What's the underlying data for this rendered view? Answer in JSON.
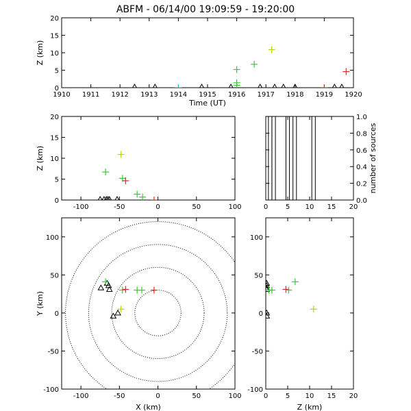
{
  "title": "ABFM - 06/14/00 19:09:59 - 19:20:00",
  "colors": {
    "station": "#000000",
    "cyan": "#00cccc",
    "green": "#33cc33",
    "yellow_green": "#aadd00",
    "red": "#ee2222",
    "range_ring": "#000000"
  },
  "chart_data": [
    {
      "id": "time_height",
      "type": "scatter",
      "xlabel": "Time (UT)",
      "ylabel": "Z (km)",
      "xlim": [
        1910,
        1920
      ],
      "ylim": [
        0,
        20
      ],
      "xticks": [
        "1910",
        "1911",
        "1912",
        "1913",
        "1914",
        "1915",
        "1916",
        "1917",
        "1918",
        "1919",
        "1920"
      ],
      "yticks": [
        "0",
        "5",
        "10",
        "15",
        "20"
      ],
      "stations_x": [
        1912.5,
        1913.2,
        1914.8,
        1915.8,
        1916.8,
        1917.3,
        1917.6,
        1918.0,
        1919.35,
        1919.6
      ],
      "sources": [
        {
          "x": 1914.0,
          "y": 0.0,
          "color": "cyan"
        },
        {
          "x": 1916.0,
          "y": 5.2,
          "color": "green"
        },
        {
          "x": 1916.0,
          "y": 1.4,
          "color": "green"
        },
        {
          "x": 1916.0,
          "y": 0.7,
          "color": "green"
        },
        {
          "x": 1916.6,
          "y": 6.7,
          "color": "green"
        },
        {
          "x": 1917.2,
          "y": 10.9,
          "color": "yellow_green"
        },
        {
          "x": 1919.0,
          "y": 0.0,
          "color": "red"
        },
        {
          "x": 1919.75,
          "y": 4.6,
          "color": "red"
        }
      ]
    },
    {
      "id": "x_height",
      "type": "scatter",
      "xlabel": "",
      "ylabel": "Z (km)",
      "xlim": [
        -125,
        100
      ],
      "ylim": [
        0,
        20
      ],
      "xticks": [
        "-100",
        "-50",
        "0",
        "50",
        "100"
      ],
      "yticks": [
        "0",
        "5",
        "10",
        "15",
        "20"
      ],
      "stations_x": [
        -75,
        -70,
        -67,
        -65,
        -63,
        -53
      ],
      "sources": [
        {
          "x": -68,
          "y": 6.7,
          "color": "green"
        },
        {
          "x": -48,
          "y": 10.9,
          "color": "yellow_green"
        },
        {
          "x": -46,
          "y": 5.2,
          "color": "green"
        },
        {
          "x": -42,
          "y": 4.6,
          "color": "red"
        },
        {
          "x": -27,
          "y": 1.4,
          "color": "green"
        },
        {
          "x": -20,
          "y": 0.7,
          "color": "green"
        },
        {
          "x": -5,
          "y": 0.0,
          "color": "red"
        }
      ]
    },
    {
      "id": "histogram",
      "type": "bar",
      "xlabel": "",
      "ylabel": "number of sources",
      "xlim": [
        0,
        20
      ],
      "ylim": [
        0,
        1.0
      ],
      "xticks": [
        "0",
        "5",
        "10",
        "15",
        "20"
      ],
      "yticks": [
        "0.0",
        "0.2",
        "0.4",
        "0.6",
        "0.8",
        "1.0"
      ],
      "bins": [
        {
          "x0": 0.6,
          "x1": 1.4,
          "value": 1
        },
        {
          "x0": 1.4,
          "x1": 2.2,
          "value": 1
        },
        {
          "x0": 4.6,
          "x1": 5.4,
          "value": 1
        },
        {
          "x0": 6.2,
          "x1": 7.0,
          "value": 1
        },
        {
          "x0": 10.5,
          "x1": 11.3,
          "value": 1
        }
      ]
    },
    {
      "id": "plan_view",
      "type": "scatter",
      "xlabel": "X (km)",
      "ylabel": "Y (km)",
      "xlim": [
        -125,
        100
      ],
      "ylim": [
        -100,
        125
      ],
      "xticks": [
        "-100",
        "-50",
        "0",
        "50",
        "100"
      ],
      "yticks": [
        "-100",
        "-50",
        "0",
        "50",
        "100"
      ],
      "range_rings_km": [
        30,
        60,
        90,
        120
      ],
      "stations": [
        {
          "x": -74,
          "y": 33
        },
        {
          "x": -66,
          "y": 39
        },
        {
          "x": -64,
          "y": 36
        },
        {
          "x": -63,
          "y": 31
        },
        {
          "x": -58,
          "y": -4
        },
        {
          "x": -52,
          "y": 0
        }
      ],
      "sources": [
        {
          "x": -68,
          "y": 41,
          "color": "green"
        },
        {
          "x": -48,
          "y": 5,
          "color": "yellow_green"
        },
        {
          "x": -46,
          "y": 30,
          "color": "green"
        },
        {
          "x": -42,
          "y": 31,
          "color": "red"
        },
        {
          "x": -27,
          "y": 30,
          "color": "green"
        },
        {
          "x": -21,
          "y": 30,
          "color": "green"
        },
        {
          "x": -5,
          "y": 30,
          "color": "red"
        }
      ]
    },
    {
      "id": "height_y",
      "type": "scatter",
      "xlabel": "Z (km)",
      "ylabel": "",
      "xlim": [
        0,
        20
      ],
      "ylim": [
        -100,
        125
      ],
      "xticks": [
        "0",
        "5",
        "10",
        "15",
        "20"
      ],
      "yticks": [
        "-100",
        "-50",
        "0",
        "50",
        "100"
      ],
      "stations": [
        {
          "x": 0.2,
          "y": 39
        },
        {
          "x": 0.2,
          "y": 36
        },
        {
          "x": 0.2,
          "y": 33
        },
        {
          "x": 0.2,
          "y": 31
        },
        {
          "x": 0.2,
          "y": 0
        },
        {
          "x": 0.2,
          "y": -4
        }
      ],
      "sources": [
        {
          "x": 0.7,
          "y": 30,
          "color": "green"
        },
        {
          "x": 1.4,
          "y": 30,
          "color": "green"
        },
        {
          "x": 4.6,
          "y": 31,
          "color": "red"
        },
        {
          "x": 5.2,
          "y": 30,
          "color": "green"
        },
        {
          "x": 6.7,
          "y": 41,
          "color": "green"
        },
        {
          "x": 10.9,
          "y": 5,
          "color": "yellow_green"
        }
      ]
    }
  ]
}
